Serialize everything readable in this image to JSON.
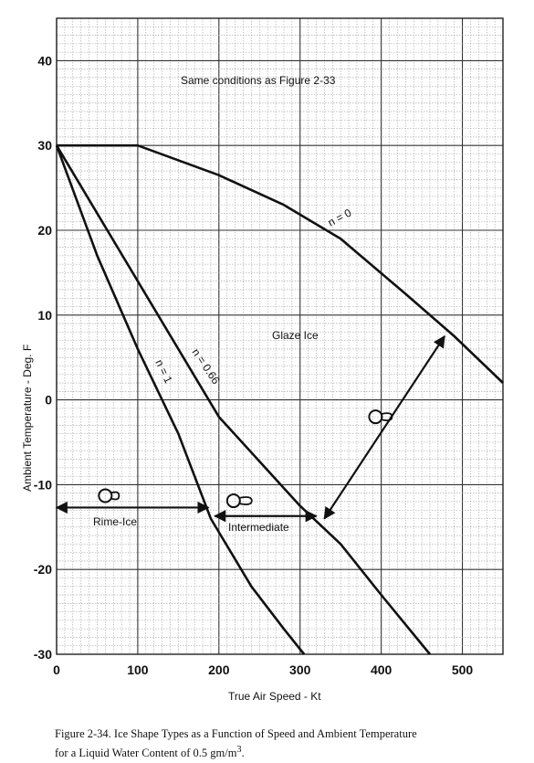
{
  "chart_data": {
    "type": "line",
    "title": "Same conditions as Figure 2-33",
    "xlabel": "True Air Speed - Kt",
    "ylabel": "Ambient Temperature - Deg. F",
    "xlim": [
      0,
      550
    ],
    "ylim": [
      -30,
      45
    ],
    "xticks": [
      "0",
      "100",
      "200",
      "300",
      "400",
      "500"
    ],
    "yticks": [
      "-30",
      "-20",
      "-10",
      "0",
      "10",
      "20",
      "30",
      "40"
    ],
    "grid": true,
    "series": [
      {
        "name": "n = 0",
        "points": [
          [
            0,
            30
          ],
          [
            100,
            30
          ],
          [
            200,
            26.5
          ],
          [
            280,
            23
          ],
          [
            350,
            19
          ],
          [
            430,
            12.5
          ],
          [
            490,
            7.5
          ],
          [
            550,
            2
          ]
        ]
      },
      {
        "name": "n = 0.66",
        "points": [
          [
            0,
            30
          ],
          [
            100,
            14
          ],
          [
            200,
            -2
          ],
          [
            300,
            -12.5
          ],
          [
            350,
            -17
          ],
          [
            400,
            -23
          ],
          [
            460,
            -30
          ]
        ]
      },
      {
        "name": "n = 1",
        "points": [
          [
            0,
            30
          ],
          [
            50,
            17
          ],
          [
            100,
            6
          ],
          [
            150,
            -4
          ],
          [
            190,
            -14
          ],
          [
            240,
            -22
          ],
          [
            280,
            -27
          ],
          [
            305,
            -30
          ]
        ]
      }
    ],
    "annotations": {
      "glaze": "Glaze Ice",
      "rime": "Rime-Ice",
      "intermediate": "Intermediate"
    }
  },
  "caption": {
    "line1": "Figure 2-34.  Ice Shape Types as a Function of Speed and Ambient Temperature",
    "line2": "for a Liquid Water Content of 0.5 gm/m",
    "line2_sup": "3",
    "line2_end": "."
  }
}
